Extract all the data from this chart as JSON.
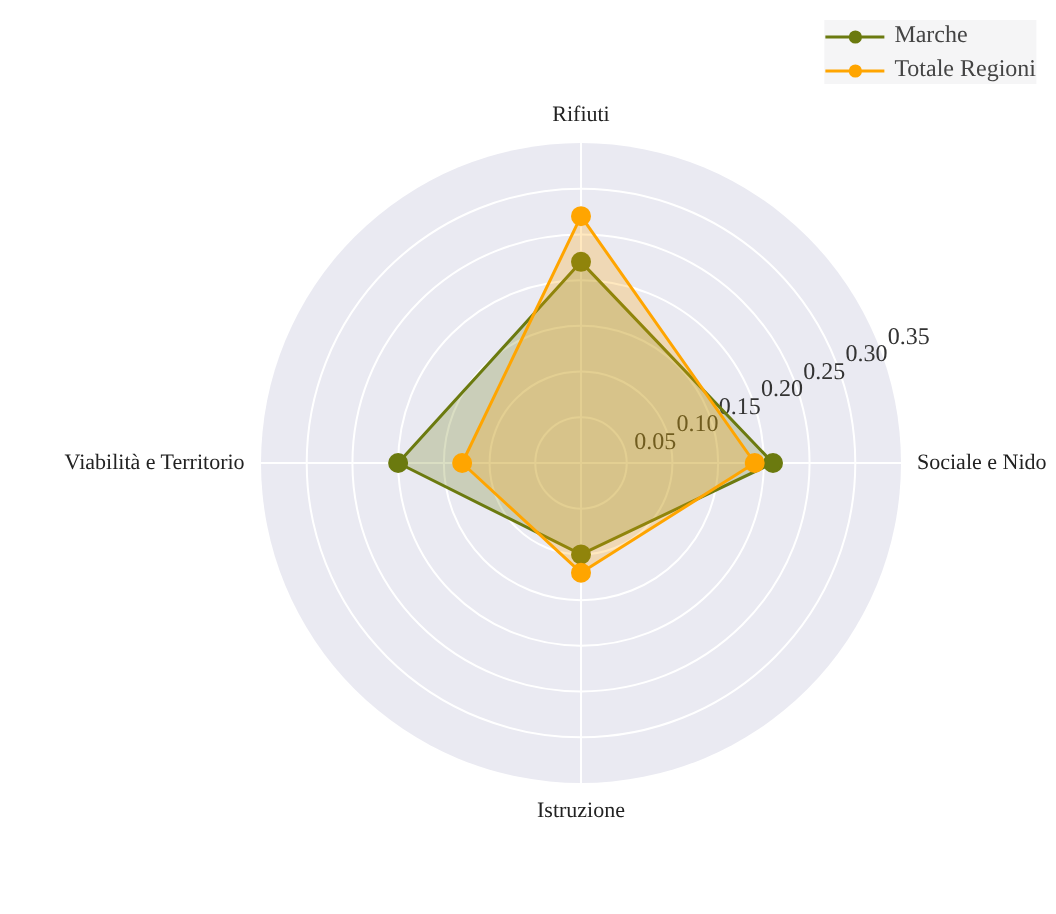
{
  "chart_data": {
    "type": "radar",
    "categories": [
      "Rifiuti",
      "Sociale e Nido",
      "Istruzione",
      "Viabilità e Territorio"
    ],
    "series": [
      {
        "name": "Marche",
        "color": "#6b7a0f",
        "values": [
          0.22,
          0.21,
          0.1,
          0.2
        ]
      },
      {
        "name": "Totale Regioni",
        "color": "#ffa500",
        "values": [
          0.27,
          0.19,
          0.12,
          0.13
        ]
      }
    ],
    "ylim": [
      0,
      0.35
    ],
    "yticks": [
      0.05,
      {
        "value": 0.1,
        "label": "0.10"
      },
      0.15,
      {
        "value": 0.2,
        "label": "0.20"
      },
      0.25,
      {
        "value": 0.3,
        "label": "0.30"
      },
      0.35
    ],
    "grid": true,
    "legend": "top right",
    "marker": "circle"
  }
}
